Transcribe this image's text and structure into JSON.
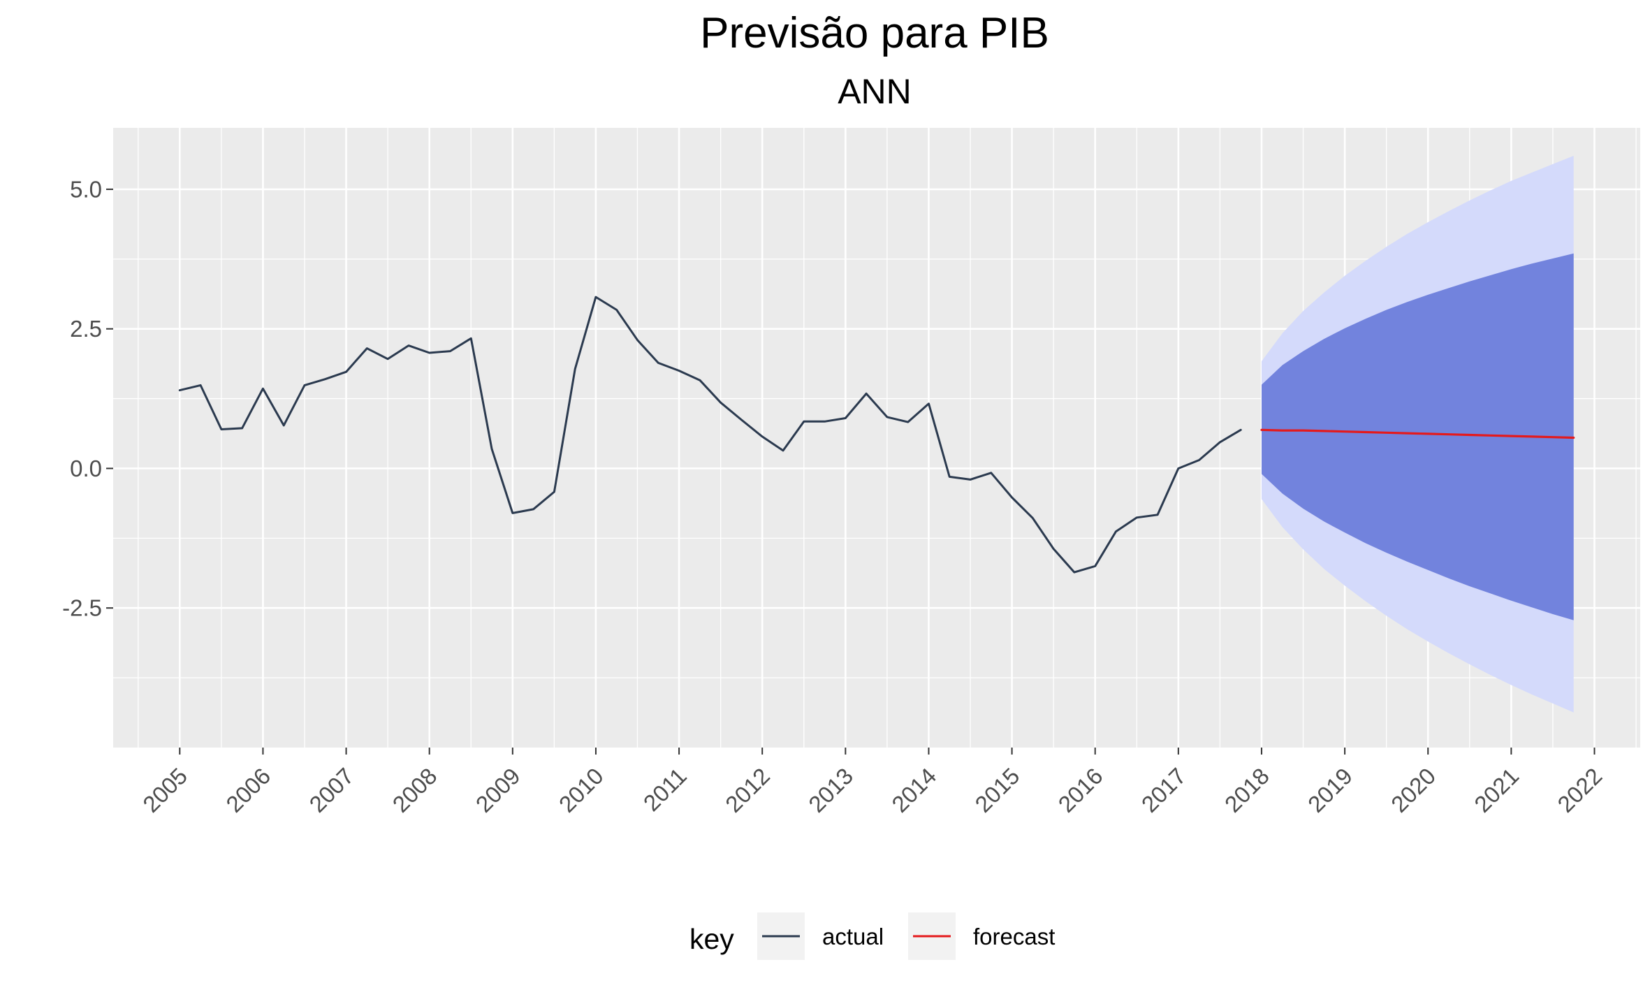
{
  "chart_data": {
    "type": "line",
    "title": "Previsão para PIB",
    "subtitle": "ANN",
    "xlabel": "",
    "ylabel": "",
    "xlim": [
      2004.2,
      2022.55
    ],
    "ylim": [
      -5.0,
      6.1
    ],
    "x_ticks": [
      "2005",
      "2006",
      "2007",
      "2008",
      "2009",
      "2010",
      "2011",
      "2012",
      "2013",
      "2014",
      "2015",
      "2016",
      "2017",
      "2018",
      "2019",
      "2020",
      "2021",
      "2022"
    ],
    "y_ticks": [
      "5.0",
      "2.5",
      "0.0",
      "-2.5"
    ],
    "y_tick_values": [
      5.0,
      2.5,
      0.0,
      -2.5
    ],
    "grid": true,
    "legend": {
      "title": "key",
      "position": "bottom",
      "entries": [
        "actual",
        "forecast"
      ]
    },
    "colors": {
      "actual": "#2b3a4f",
      "forecast": "#e41a1c",
      "band80": "#7283dd",
      "band95": "#d4dafb",
      "panel": "#ebebeb",
      "grid": "#ffffff"
    },
    "series": [
      {
        "name": "actual",
        "x": [
          2005.0,
          2005.25,
          2005.5,
          2005.75,
          2006.0,
          2006.25,
          2006.5,
          2006.75,
          2007.0,
          2007.25,
          2007.5,
          2007.75,
          2008.0,
          2008.25,
          2008.5,
          2008.75,
          2009.0,
          2009.25,
          2009.5,
          2009.75,
          2010.0,
          2010.25,
          2010.5,
          2010.75,
          2011.0,
          2011.25,
          2011.5,
          2011.75,
          2012.0,
          2012.25,
          2012.5,
          2012.75,
          2013.0,
          2013.25,
          2013.5,
          2013.75,
          2014.0,
          2014.25,
          2014.5,
          2014.75,
          2015.0,
          2015.25,
          2015.5,
          2015.75,
          2016.0,
          2016.25,
          2016.5,
          2016.75,
          2017.0,
          2017.25,
          2017.5,
          2017.75
        ],
        "values": [
          1.4,
          1.49,
          0.7,
          0.72,
          1.43,
          0.77,
          1.49,
          1.6,
          1.73,
          2.15,
          1.96,
          2.2,
          2.07,
          2.1,
          2.33,
          0.35,
          -0.8,
          -0.73,
          -0.42,
          1.78,
          3.07,
          2.84,
          2.3,
          1.89,
          1.75,
          1.58,
          1.18,
          0.87,
          0.57,
          0.32,
          0.84,
          0.84,
          0.9,
          1.34,
          0.92,
          0.83,
          1.16,
          -0.15,
          -0.2,
          -0.08,
          -0.52,
          -0.89,
          -1.44,
          -1.86,
          -1.75,
          -1.13,
          -0.88,
          -0.83,
          0.0,
          0.15,
          0.47,
          0.69
        ]
      },
      {
        "name": "forecast",
        "x": [
          2018.0,
          2018.25,
          2018.5,
          2018.75,
          2019.0,
          2019.25,
          2019.5,
          2019.75,
          2020.0,
          2020.25,
          2020.5,
          2020.75,
          2021.0,
          2021.25,
          2021.5,
          2021.75
        ],
        "values": [
          0.69,
          0.68,
          0.68,
          0.67,
          0.66,
          0.65,
          0.64,
          0.63,
          0.62,
          0.61,
          0.6,
          0.59,
          0.58,
          0.57,
          0.56,
          0.55
        ],
        "lo80": [
          -0.1,
          -0.45,
          -0.72,
          -0.95,
          -1.15,
          -1.34,
          -1.51,
          -1.67,
          -1.82,
          -1.97,
          -2.11,
          -2.24,
          -2.37,
          -2.49,
          -2.61,
          -2.72
        ],
        "hi80": [
          1.5,
          1.85,
          2.1,
          2.32,
          2.51,
          2.68,
          2.84,
          2.98,
          3.11,
          3.23,
          3.35,
          3.46,
          3.57,
          3.67,
          3.76,
          3.85
        ],
        "lo95": [
          -0.55,
          -1.05,
          -1.45,
          -1.8,
          -2.1,
          -2.38,
          -2.64,
          -2.88,
          -3.1,
          -3.31,
          -3.51,
          -3.7,
          -3.88,
          -4.05,
          -4.21,
          -4.37
        ],
        "hi95": [
          1.92,
          2.42,
          2.82,
          3.15,
          3.45,
          3.72,
          3.97,
          4.2,
          4.41,
          4.61,
          4.8,
          4.98,
          5.15,
          5.3,
          5.45,
          5.6
        ]
      }
    ]
  }
}
